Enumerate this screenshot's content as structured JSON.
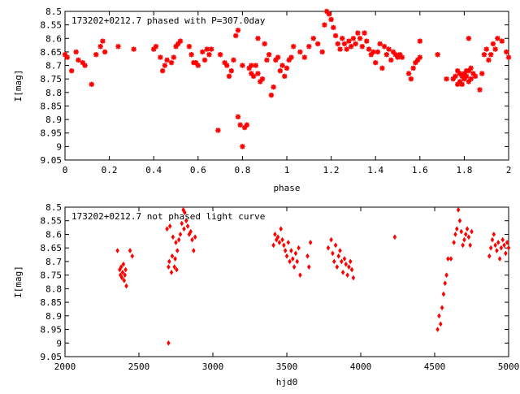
{
  "chart_data": [
    {
      "type": "scatter",
      "title": "173202+0212.7 phased with P=307.0day",
      "xlabel": "phase",
      "ylabel": "I[mag]",
      "xlim": [
        0,
        2
      ],
      "ylim": [
        9.05,
        8.5
      ],
      "y_inverted": true,
      "xticks": [
        0,
        0.2,
        0.4,
        0.6,
        0.8,
        1,
        1.2,
        1.4,
        1.6,
        1.8,
        2
      ],
      "xtick_labels": [
        "0",
        "0.2",
        "0.4",
        "0.6",
        "0.8",
        "1",
        "1.2",
        "1.4",
        "1.6",
        "1.8",
        "2"
      ],
      "yticks": [
        8.5,
        8.55,
        8.6,
        8.65,
        8.7,
        8.75,
        8.8,
        8.85,
        8.9,
        8.95,
        9,
        9.05
      ],
      "ytick_labels": [
        "8.5",
        "8.55",
        "8.6",
        "8.65",
        "8.7",
        "8.75",
        "8.8",
        "8.85",
        "8.9",
        "8.95",
        "9",
        "9.05"
      ],
      "marker": "plus-cross",
      "color": "#ff0000",
      "grid": false,
      "points": [
        [
          0.0,
          8.66
        ],
        [
          0.01,
          8.67
        ],
        [
          0.03,
          8.72
        ],
        [
          0.05,
          8.65
        ],
        [
          0.06,
          8.68
        ],
        [
          0.08,
          8.69
        ],
        [
          0.09,
          8.7
        ],
        [
          0.12,
          8.77
        ],
        [
          0.14,
          8.66
        ],
        [
          0.16,
          8.63
        ],
        [
          0.17,
          8.61
        ],
        [
          0.18,
          8.65
        ],
        [
          0.24,
          8.63
        ],
        [
          0.31,
          8.64
        ],
        [
          0.4,
          8.64
        ],
        [
          0.41,
          8.63
        ],
        [
          0.43,
          8.67
        ],
        [
          0.44,
          8.72
        ],
        [
          0.45,
          8.7
        ],
        [
          0.46,
          8.68
        ],
        [
          0.48,
          8.69
        ],
        [
          0.49,
          8.67
        ],
        [
          0.5,
          8.63
        ],
        [
          0.51,
          8.62
        ],
        [
          0.52,
          8.61
        ],
        [
          0.56,
          8.63
        ],
        [
          0.57,
          8.66
        ],
        [
          0.58,
          8.69
        ],
        [
          0.59,
          8.69
        ],
        [
          0.6,
          8.7
        ],
        [
          0.62,
          8.65
        ],
        [
          0.63,
          8.68
        ],
        [
          0.64,
          8.64
        ],
        [
          0.65,
          8.66
        ],
        [
          0.66,
          8.64
        ],
        [
          0.69,
          8.94
        ],
        [
          0.7,
          8.66
        ],
        [
          0.72,
          8.69
        ],
        [
          0.73,
          8.7
        ],
        [
          0.74,
          8.74
        ],
        [
          0.75,
          8.72
        ],
        [
          0.76,
          8.68
        ],
        [
          0.77,
          8.59
        ],
        [
          0.78,
          8.57
        ],
        [
          0.78,
          8.89
        ],
        [
          0.79,
          8.92
        ],
        [
          0.8,
          8.7
        ],
        [
          0.81,
          8.93
        ],
        [
          0.82,
          8.92
        ],
        [
          0.83,
          8.71
        ],
        [
          0.84,
          8.73
        ],
        [
          0.84,
          8.7
        ],
        [
          0.85,
          8.74
        ],
        [
          0.86,
          8.7
        ],
        [
          0.87,
          8.6
        ],
        [
          0.87,
          8.73
        ],
        [
          0.88,
          8.76
        ],
        [
          0.89,
          8.75
        ],
        [
          0.9,
          8.62
        ],
        [
          0.91,
          8.68
        ],
        [
          0.92,
          8.66
        ],
        [
          0.93,
          8.81
        ],
        [
          0.94,
          8.78
        ],
        [
          0.95,
          8.68
        ],
        [
          0.96,
          8.67
        ],
        [
          0.97,
          8.72
        ],
        [
          0.98,
          8.7
        ],
        [
          0.99,
          8.74
        ],
        [
          1.0,
          8.71
        ],
        [
          1.01,
          8.68
        ],
        [
          1.02,
          8.67
        ],
        [
          1.03,
          8.63
        ],
        [
          0.8,
          9.0
        ],
        [
          1.06,
          8.65
        ],
        [
          1.08,
          8.67
        ],
        [
          1.1,
          8.63
        ],
        [
          1.12,
          8.6
        ],
        [
          1.14,
          8.62
        ],
        [
          1.16,
          8.65
        ],
        [
          1.17,
          8.55
        ],
        [
          1.18,
          8.5
        ],
        [
          1.19,
          8.51
        ],
        [
          1.2,
          8.53
        ],
        [
          1.21,
          8.56
        ],
        [
          1.22,
          8.59
        ],
        [
          1.23,
          8.62
        ],
        [
          1.24,
          8.64
        ],
        [
          1.25,
          8.6
        ],
        [
          1.26,
          8.62
        ],
        [
          1.27,
          8.64
        ],
        [
          1.28,
          8.61
        ],
        [
          1.29,
          8.63
        ],
        [
          1.3,
          8.6
        ],
        [
          1.31,
          8.62
        ],
        [
          1.32,
          8.58
        ],
        [
          1.33,
          8.6
        ],
        [
          1.34,
          8.63
        ],
        [
          1.35,
          8.58
        ],
        [
          1.36,
          8.61
        ],
        [
          1.37,
          8.64
        ],
        [
          1.38,
          8.66
        ],
        [
          1.39,
          8.65
        ],
        [
          1.4,
          8.69
        ],
        [
          1.41,
          8.65
        ],
        [
          1.42,
          8.62
        ],
        [
          1.43,
          8.71
        ],
        [
          1.44,
          8.63
        ],
        [
          1.45,
          8.66
        ],
        [
          1.46,
          8.64
        ],
        [
          1.47,
          8.68
        ],
        [
          1.48,
          8.65
        ],
        [
          1.49,
          8.66
        ],
        [
          1.5,
          8.67
        ],
        [
          1.51,
          8.66
        ],
        [
          1.52,
          8.67
        ],
        [
          1.55,
          8.73
        ],
        [
          1.56,
          8.75
        ],
        [
          1.57,
          8.71
        ],
        [
          1.58,
          8.69
        ],
        [
          1.59,
          8.68
        ],
        [
          1.6,
          8.67
        ],
        [
          1.6,
          8.61
        ],
        [
          1.68,
          8.66
        ],
        [
          1.72,
          8.75
        ],
        [
          1.75,
          8.75
        ],
        [
          1.76,
          8.74
        ],
        [
          1.77,
          8.72
        ],
        [
          1.77,
          8.77
        ],
        [
          1.78,
          8.73
        ],
        [
          1.78,
          8.76
        ],
        [
          1.79,
          8.74
        ],
        [
          1.79,
          8.77
        ],
        [
          1.8,
          8.73
        ],
        [
          1.8,
          8.75
        ],
        [
          1.81,
          8.72
        ],
        [
          1.81,
          8.74
        ],
        [
          1.82,
          8.72
        ],
        [
          1.82,
          8.76
        ],
        [
          1.83,
          8.71
        ],
        [
          1.83,
          8.75
        ],
        [
          1.84,
          8.73
        ],
        [
          1.85,
          8.74
        ],
        [
          1.82,
          8.6
        ],
        [
          1.87,
          8.79
        ],
        [
          1.88,
          8.73
        ],
        [
          1.89,
          8.66
        ],
        [
          1.9,
          8.64
        ],
        [
          1.91,
          8.68
        ],
        [
          1.92,
          8.66
        ],
        [
          1.93,
          8.62
        ],
        [
          1.94,
          8.64
        ],
        [
          1.95,
          8.6
        ],
        [
          1.97,
          8.61
        ],
        [
          1.99,
          8.65
        ],
        [
          2.0,
          8.67
        ]
      ]
    },
    {
      "type": "scatter",
      "title": "173202+0212.7 not phased light curve",
      "xlabel": "hjd0",
      "ylabel": "I[mag]",
      "xlim": [
        2000,
        5000
      ],
      "ylim": [
        9.05,
        8.5
      ],
      "y_inverted": true,
      "xticks": [
        2000,
        2500,
        3000,
        3500,
        4000,
        4500,
        5000
      ],
      "xtick_labels": [
        "2000",
        "2500",
        "3000",
        "3500",
        "4000",
        "4500",
        "5000"
      ],
      "yticks": [
        8.5,
        8.55,
        8.6,
        8.65,
        8.7,
        8.75,
        8.8,
        8.85,
        8.9,
        8.95,
        9,
        9.05
      ],
      "ytick_labels": [
        "8.5",
        "8.55",
        "8.6",
        "8.65",
        "8.7",
        "8.75",
        "8.8",
        "8.85",
        "8.9",
        "8.95",
        "9",
        "9.05"
      ],
      "marker": "diamond",
      "color": "#ff0000",
      "grid": false,
      "points": [
        [
          2355,
          8.66
        ],
        [
          2370,
          8.73
        ],
        [
          2375,
          8.75
        ],
        [
          2380,
          8.72
        ],
        [
          2385,
          8.76
        ],
        [
          2390,
          8.74
        ],
        [
          2395,
          8.71
        ],
        [
          2400,
          8.77
        ],
        [
          2405,
          8.75
        ],
        [
          2410,
          8.73
        ],
        [
          2415,
          8.79
        ],
        [
          2440,
          8.66
        ],
        [
          2455,
          8.68
        ],
        [
          2690,
          8.58
        ],
        [
          2700,
          8.72
        ],
        [
          2705,
          8.7
        ],
        [
          2710,
          8.57
        ],
        [
          2720,
          8.74
        ],
        [
          2725,
          8.68
        ],
        [
          2730,
          8.61
        ],
        [
          2740,
          8.72
        ],
        [
          2745,
          8.69
        ],
        [
          2750,
          8.63
        ],
        [
          2755,
          8.73
        ],
        [
          2760,
          8.66
        ],
        [
          2770,
          8.62
        ],
        [
          2780,
          8.6
        ],
        [
          2790,
          8.56
        ],
        [
          2800,
          8.51
        ],
        [
          2805,
          8.58
        ],
        [
          2810,
          8.52
        ],
        [
          2820,
          8.55
        ],
        [
          2830,
          8.57
        ],
        [
          2840,
          8.6
        ],
        [
          2850,
          8.59
        ],
        [
          2860,
          8.62
        ],
        [
          2870,
          8.66
        ],
        [
          2880,
          8.61
        ],
        [
          2700,
          9.0
        ],
        [
          3410,
          8.64
        ],
        [
          3420,
          8.6
        ],
        [
          3430,
          8.62
        ],
        [
          3440,
          8.61
        ],
        [
          3450,
          8.63
        ],
        [
          3460,
          8.58
        ],
        [
          3470,
          8.62
        ],
        [
          3480,
          8.64
        ],
        [
          3490,
          8.66
        ],
        [
          3500,
          8.68
        ],
        [
          3510,
          8.63
        ],
        [
          3520,
          8.7
        ],
        [
          3530,
          8.66
        ],
        [
          3540,
          8.69
        ],
        [
          3550,
          8.72
        ],
        [
          3560,
          8.67
        ],
        [
          3570,
          8.7
        ],
        [
          3580,
          8.65
        ],
        [
          3590,
          8.75
        ],
        [
          3640,
          8.68
        ],
        [
          3650,
          8.72
        ],
        [
          3660,
          8.63
        ],
        [
          3780,
          8.65
        ],
        [
          3800,
          8.62
        ],
        [
          3810,
          8.67
        ],
        [
          3820,
          8.7
        ],
        [
          3830,
          8.64
        ],
        [
          3840,
          8.72
        ],
        [
          3850,
          8.68
        ],
        [
          3860,
          8.66
        ],
        [
          3870,
          8.7
        ],
        [
          3880,
          8.74
        ],
        [
          3890,
          8.69
        ],
        [
          3900,
          8.71
        ],
        [
          3910,
          8.75
        ],
        [
          3920,
          8.72
        ],
        [
          3930,
          8.7
        ],
        [
          3940,
          8.73
        ],
        [
          3950,
          8.76
        ],
        [
          4230,
          8.61
        ],
        [
          4520,
          8.95
        ],
        [
          4530,
          8.9
        ],
        [
          4540,
          8.93
        ],
        [
          4550,
          8.87
        ],
        [
          4560,
          8.82
        ],
        [
          4570,
          8.78
        ],
        [
          4580,
          8.75
        ],
        [
          4590,
          8.69
        ],
        [
          4610,
          8.69
        ],
        [
          4630,
          8.63
        ],
        [
          4640,
          8.6
        ],
        [
          4650,
          8.58
        ],
        [
          4660,
          8.51
        ],
        [
          4670,
          8.55
        ],
        [
          4680,
          8.59
        ],
        [
          4690,
          8.64
        ],
        [
          4700,
          8.62
        ],
        [
          4710,
          8.6
        ],
        [
          4720,
          8.58
        ],
        [
          4730,
          8.61
        ],
        [
          4740,
          8.64
        ],
        [
          4750,
          8.59
        ],
        [
          4870,
          8.68
        ],
        [
          4880,
          8.65
        ],
        [
          4890,
          8.62
        ],
        [
          4900,
          8.6
        ],
        [
          4910,
          8.64
        ],
        [
          4920,
          8.66
        ],
        [
          4930,
          8.63
        ],
        [
          4940,
          8.69
        ],
        [
          4950,
          8.65
        ],
        [
          4960,
          8.62
        ],
        [
          4970,
          8.64
        ],
        [
          4980,
          8.67
        ],
        [
          4990,
          8.63
        ],
        [
          5000,
          8.65
        ]
      ]
    }
  ]
}
